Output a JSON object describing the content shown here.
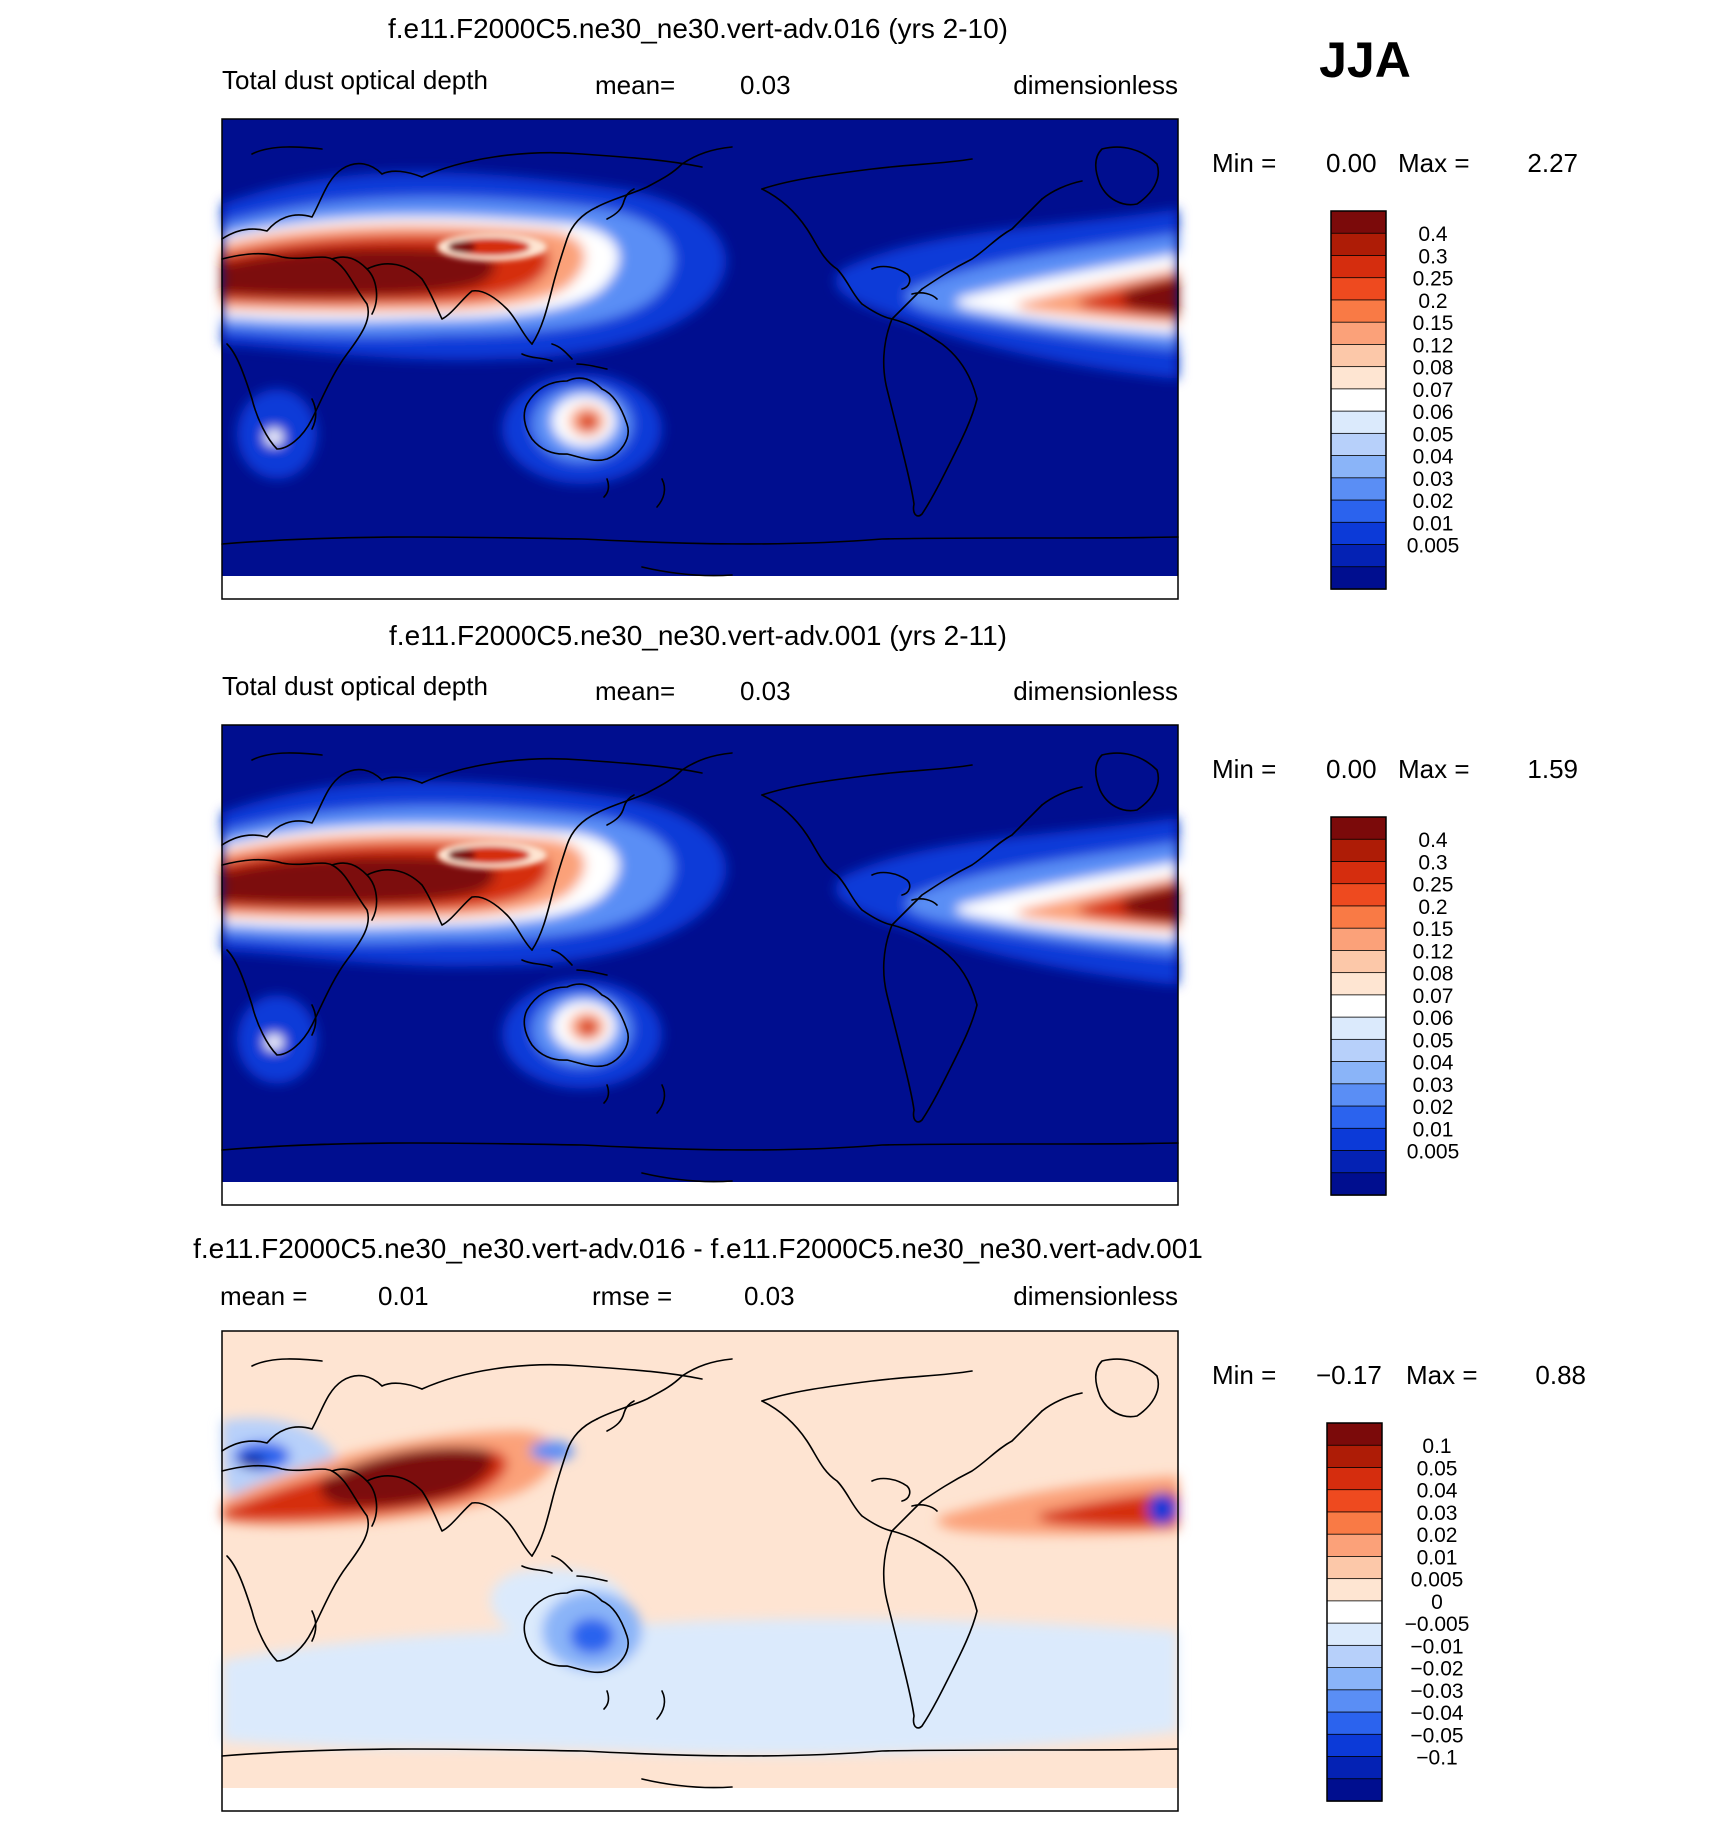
{
  "season": "JJA",
  "colors": {
    "ocean_blue": "#000e8f",
    "diff_background": "#fee4d2",
    "coast": "#000000"
  },
  "panels": [
    {
      "title": "f.e11.F2000C5.ne30_ne30.vert-adv.016 (yrs 2-10)",
      "variable": "Total dust optical depth",
      "mean_label": "mean=",
      "mean_value": "0.03",
      "units": "dimensionless",
      "min_label": "Min =",
      "min_value": "0.00",
      "max_label": "Max =",
      "max_value": "2.27"
    },
    {
      "title": "f.e11.F2000C5.ne30_ne30.vert-adv.001 (yrs 2-11)",
      "variable": "Total dust optical depth",
      "mean_label": "mean=",
      "mean_value": "0.03",
      "units": "dimensionless",
      "min_label": "Min =",
      "min_value": "0.00",
      "max_label": "Max =",
      "max_value": "1.59"
    },
    {
      "title": "f.e11.F2000C5.ne30_ne30.vert-adv.016 - f.e11.F2000C5.ne30_ne30.vert-adv.001",
      "mean_label": "mean =",
      "mean_value": "0.01",
      "rmse_label": "rmse =",
      "rmse_value": "0.03",
      "units": "dimensionless",
      "min_label": "Min =",
      "min_value": "−0.17",
      "max_label": "Max =",
      "max_value": "0.88"
    }
  ],
  "colorbars": {
    "aod": {
      "labels": [
        "0.4",
        "0.3",
        "0.25",
        "0.2",
        "0.15",
        "0.12",
        "0.08",
        "0.07",
        "0.06",
        "0.05",
        "0.04",
        "0.03",
        "0.02",
        "0.01",
        "0.005"
      ],
      "colors": [
        "#7b0a0a",
        "#ae1c06",
        "#d52d0e",
        "#ee4a1f",
        "#f97a45",
        "#fba179",
        "#fcc8a9",
        "#fee5d2",
        "#ffffff",
        "#dbeafc",
        "#b7d0fa",
        "#8ab4f8",
        "#5a8ef5",
        "#2b63ee",
        "#0c3ad8",
        "#0422b4",
        "#000e8f"
      ]
    },
    "diff": {
      "labels": [
        "0.1",
        "0.05",
        "0.04",
        "0.03",
        "0.02",
        "0.01",
        "0.005",
        "0",
        "−0.005",
        "−0.01",
        "−0.02",
        "−0.03",
        "−0.04",
        "−0.05",
        "−0.1"
      ],
      "colors": [
        "#7b0a0a",
        "#ae1c06",
        "#d52d0e",
        "#ee4a1f",
        "#f97a45",
        "#fba179",
        "#fcc8a9",
        "#fee5d2",
        "#ffffff",
        "#dbeafc",
        "#b7d0fa",
        "#8ab4f8",
        "#5a8ef5",
        "#2b63ee",
        "#0c3ad8",
        "#0422b4",
        "#000e8f"
      ]
    }
  }
}
